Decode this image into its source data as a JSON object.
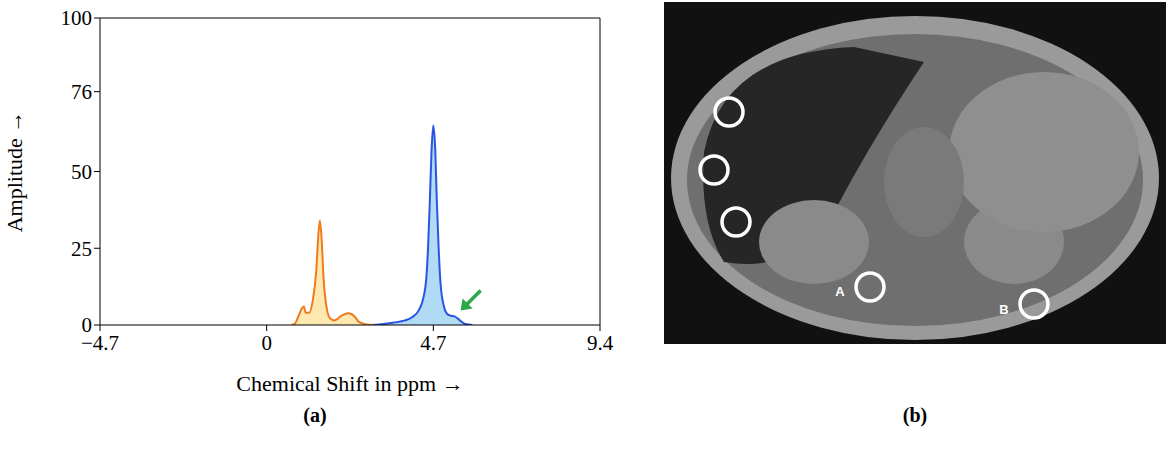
{
  "chart_data": {
    "type": "area",
    "xlabel": "Chemical Shift in ppm →",
    "ylabel": "Amplitude →",
    "xlim": [
      -4.7,
      9.4
    ],
    "xticks": [
      {
        "value": -4.7,
        "label": "−4.7"
      },
      0,
      4.7,
      9.4
    ],
    "ylim": [
      0,
      100
    ],
    "yticks": [
      0,
      25,
      50,
      76,
      100
    ],
    "grid": false,
    "series": [
      {
        "color": "#f07a1e",
        "x": [
          0.7,
          0.8,
          0.9,
          1.0,
          1.05,
          1.1,
          1.2,
          1.3,
          1.4,
          1.45,
          1.5,
          1.55,
          1.6,
          1.7,
          1.8,
          1.9,
          2.0,
          2.1,
          2.2,
          2.3,
          2.4,
          2.5,
          2.6,
          2.8,
          3.0
        ],
        "values": [
          0,
          0.5,
          3,
          5.5,
          6,
          4,
          4,
          8,
          18,
          28,
          34,
          28,
          16,
          5,
          2,
          1.5,
          2,
          3,
          3.5,
          3.8,
          3.5,
          2.5,
          1,
          0.2,
          0
        ]
      },
      {
        "color": "#2a55e0",
        "x": [
          3.0,
          3.3,
          3.6,
          3.9,
          4.1,
          4.3,
          4.4,
          4.5,
          4.55,
          4.6,
          4.65,
          4.7,
          4.75,
          4.8,
          4.85,
          4.9,
          5.0,
          5.1,
          5.2,
          5.3,
          5.4,
          5.5,
          5.6,
          5.8
        ],
        "values": [
          0,
          0.3,
          0.8,
          1.5,
          2.5,
          5,
          8,
          15,
          25,
          40,
          57,
          65,
          58,
          40,
          25,
          14,
          6,
          3.5,
          3,
          2.8,
          2,
          1,
          0.3,
          0
        ]
      }
    ]
  },
  "panel_labels": [
    "(a)",
    "(b)"
  ],
  "image_labels": [
    "A",
    "B"
  ]
}
